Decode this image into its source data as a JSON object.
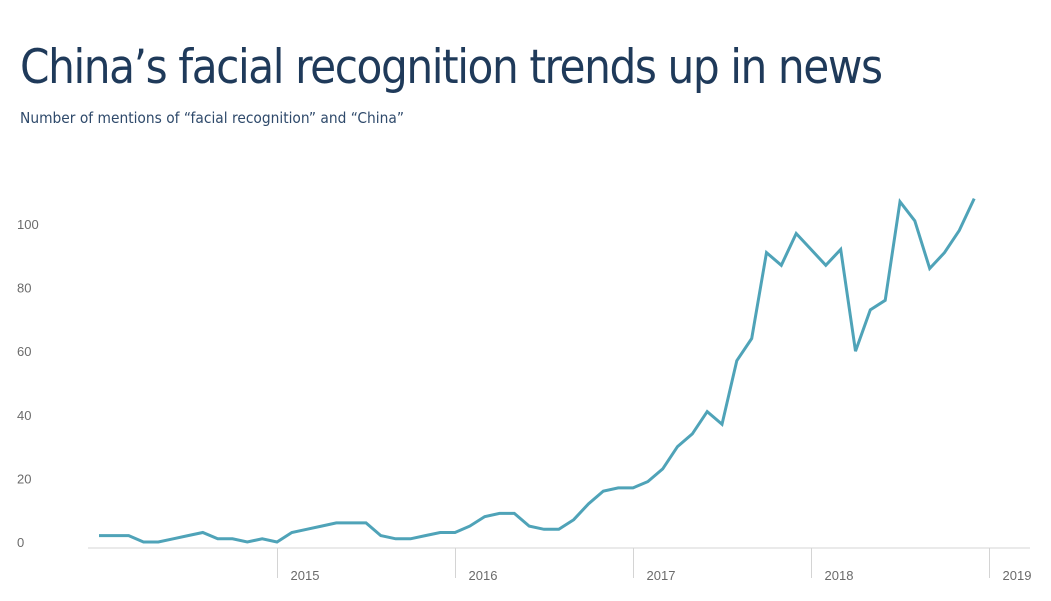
{
  "header": {
    "title": "China’s facial recognition trends up in news",
    "subtitle": "Number of mentions of “facial recognition” and “China”"
  },
  "chart_data": {
    "type": "line",
    "title": "China’s facial recognition trends up in news",
    "subtitle": "Number of mentions of “facial recognition” and “China”",
    "xlabel": "",
    "ylabel": "",
    "x_ticks": [
      "2015",
      "2016",
      "2017",
      "2018",
      "2019"
    ],
    "y_ticks": [
      0,
      20,
      40,
      60,
      80,
      100
    ],
    "ylim": [
      0,
      110
    ],
    "grid": false,
    "line_color": "#4fa3b8",
    "series": [
      {
        "x": [
          "2014-01",
          "2014-02",
          "2014-03",
          "2014-04",
          "2014-05",
          "2014-06",
          "2014-07",
          "2014-08",
          "2014-09",
          "2014-10",
          "2014-11",
          "2014-12",
          "2015-01",
          "2015-02",
          "2015-03",
          "2015-04",
          "2015-05",
          "2015-06",
          "2015-07",
          "2015-08",
          "2015-09",
          "2015-10",
          "2015-11",
          "2015-12",
          "2016-01",
          "2016-02",
          "2016-03",
          "2016-04",
          "2016-05",
          "2016-06",
          "2016-07",
          "2016-08",
          "2016-09",
          "2016-10",
          "2016-11",
          "2016-12",
          "2017-01",
          "2017-02",
          "2017-03",
          "2017-04",
          "2017-05",
          "2017-06",
          "2017-07",
          "2017-08",
          "2017-09",
          "2017-10",
          "2017-11",
          "2017-12",
          "2018-01",
          "2018-02",
          "2018-03",
          "2018-04",
          "2018-05",
          "2018-06",
          "2018-07",
          "2018-08",
          "2018-09",
          "2018-10",
          "2018-11",
          "2018-12"
        ],
        "values": [
          2,
          2,
          2,
          0,
          0,
          1,
          2,
          3,
          1,
          1,
          0,
          1,
          0,
          3,
          4,
          5,
          6,
          6,
          6,
          2,
          1,
          1,
          2,
          3,
          3,
          5,
          8,
          9,
          9,
          5,
          4,
          4,
          7,
          12,
          16,
          17,
          17,
          19,
          23,
          30,
          34,
          41,
          37,
          57,
          64,
          91,
          87,
          97,
          92,
          87,
          92,
          60,
          73,
          76,
          107,
          101,
          86,
          91,
          98,
          108
        ]
      }
    ]
  }
}
